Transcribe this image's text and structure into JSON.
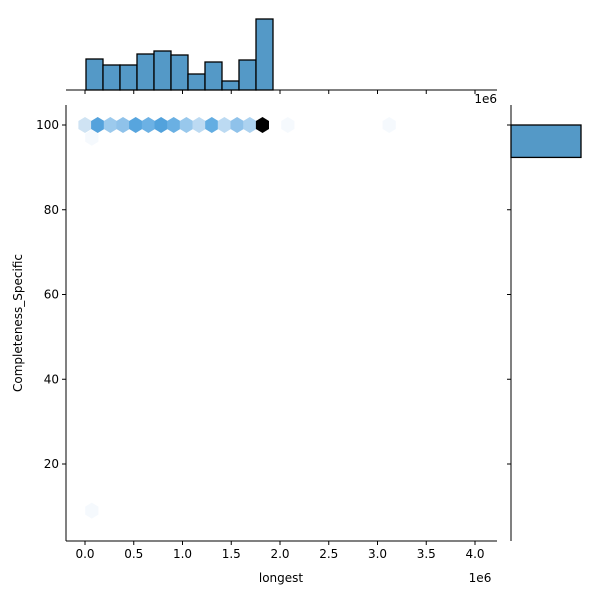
{
  "chart_data": {
    "type": "hexbin-joint",
    "title": "",
    "xlabel": "longest",
    "ylabel": "Completeness_Specific",
    "x_offset_label": "1e6",
    "top_offset_label": "1e6",
    "xlim": [
      -0.2,
      4.3
    ],
    "ylim": [
      2,
      105
    ],
    "x_ticks": [
      "0.0",
      "0.5",
      "1.0",
      "1.5",
      "2.0",
      "2.5",
      "3.0",
      "3.5",
      "4.0"
    ],
    "y_ticks": [
      "20",
      "40",
      "60",
      "80",
      "100"
    ],
    "bar_color": "#5499c7",
    "hexbin": {
      "row_y": 100,
      "cells": [
        {
          "x": 0.0,
          "y": 100,
          "color": "#cfe3f3"
        },
        {
          "x": 0.13,
          "y": 100,
          "color": "#54a2dc"
        },
        {
          "x": 0.26,
          "y": 100,
          "color": "#9ccaed"
        },
        {
          "x": 0.39,
          "y": 100,
          "color": "#8fc2ea"
        },
        {
          "x": 0.52,
          "y": 100,
          "color": "#57a5de"
        },
        {
          "x": 0.65,
          "y": 100,
          "color": "#6cb1e4"
        },
        {
          "x": 0.78,
          "y": 100,
          "color": "#52a2dc"
        },
        {
          "x": 0.91,
          "y": 100,
          "color": "#6ab0e3"
        },
        {
          "x": 1.04,
          "y": 100,
          "color": "#98c8ec"
        },
        {
          "x": 1.17,
          "y": 100,
          "color": "#bcdaf2"
        },
        {
          "x": 1.3,
          "y": 100,
          "color": "#63ade2"
        },
        {
          "x": 1.43,
          "y": 100,
          "color": "#bcdaf2"
        },
        {
          "x": 1.56,
          "y": 100,
          "color": "#8fc2ea"
        },
        {
          "x": 1.69,
          "y": 100,
          "color": "#acd2f0"
        },
        {
          "x": 1.82,
          "y": 100,
          "color": "#000000"
        },
        {
          "x": 2.08,
          "y": 100,
          "color": "#f5f9fd"
        },
        {
          "x": 3.12,
          "y": 100,
          "color": "#f5f9fd"
        },
        {
          "x": 0.07,
          "y": 97,
          "color": "#f5f9fd"
        },
        {
          "x": 0.07,
          "y": 9,
          "color": "#f5f9fd"
        }
      ]
    },
    "top_histogram": {
      "bin_edges_1e6": [
        0.0,
        0.17,
        0.35,
        0.52,
        0.7,
        0.87,
        1.05,
        1.22,
        1.4,
        1.57,
        1.75,
        1.92
      ],
      "relative_heights": [
        31,
        25,
        25,
        36,
        39,
        35,
        16,
        28,
        9,
        30,
        71
      ]
    },
    "right_histogram": {
      "bins": [
        {
          "y_from": 94,
          "y_to": 100,
          "relative_width": 70
        }
      ]
    }
  }
}
